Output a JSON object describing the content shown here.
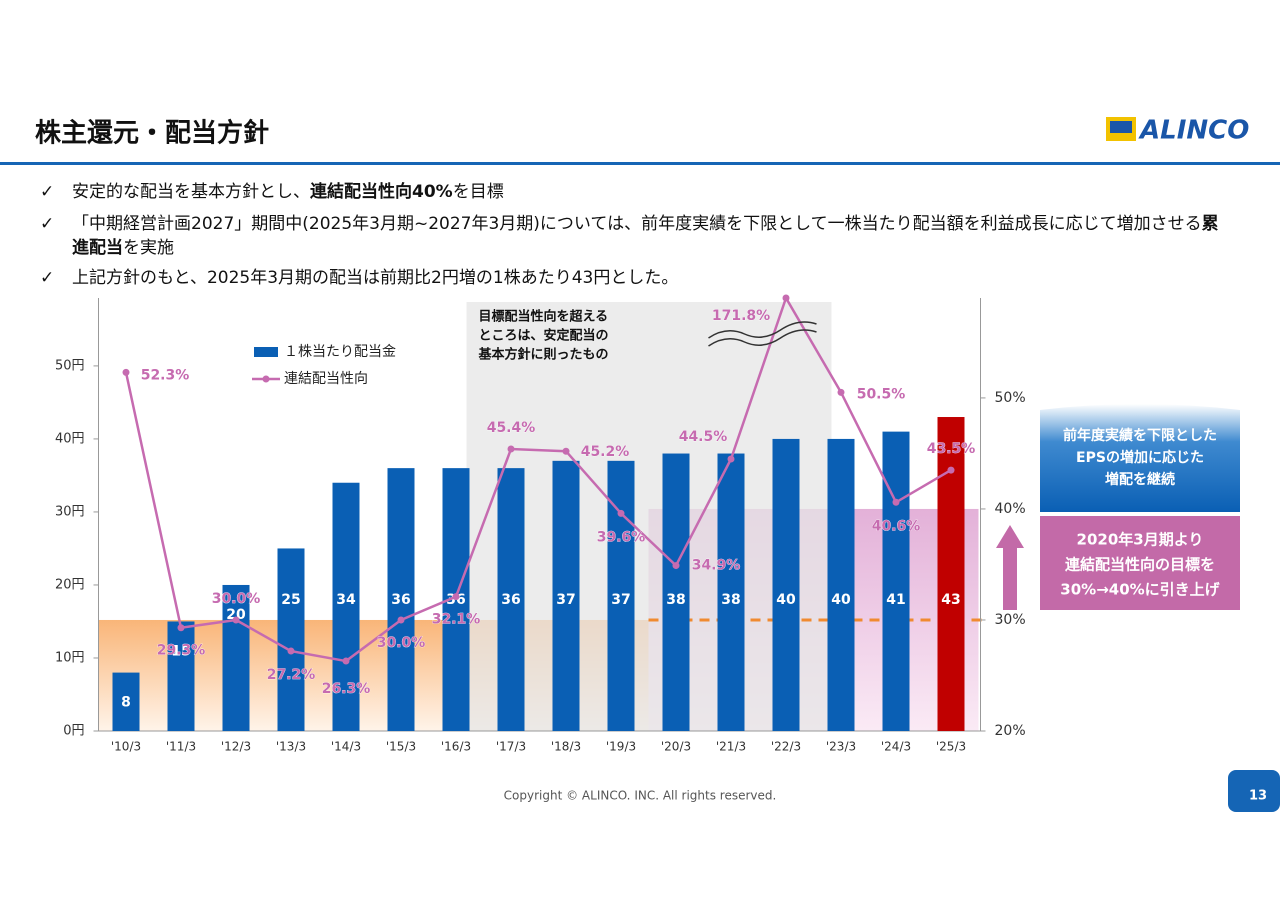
{
  "header": {
    "title": "株主還元・配当方針",
    "logo": "ALINCO"
  },
  "bullets": [
    [
      {
        "text": "安定的な配当を基本方針とし、",
        "bold": false
      },
      {
        "text": "連結配当性向40%",
        "bold": true
      },
      {
        "text": "を目標",
        "bold": false
      }
    ],
    [
      {
        "text": "「中期経営計画2027」期間中(2025年3月期~2027年3月期)については、前年度実績を下限として一株当たり配当額を利益成長に応じて増加させる",
        "bold": false
      },
      {
        "text": "累進配当",
        "bold": true
      },
      {
        "text": "を実施",
        "bold": false
      }
    ],
    [
      {
        "text": "上記方針のもと、2025年3月期の配当は前期比2円増の1株あたり43円とした。",
        "bold": false
      }
    ]
  ],
  "chart_data": {
    "type": "bar",
    "categories": [
      "'10/3",
      "'11/3",
      "'12/3",
      "'13/3",
      "'14/3",
      "'15/3",
      "'16/3",
      "'17/3",
      "'18/3",
      "'19/3",
      "'20/3",
      "'21/3",
      "'22/3",
      "'23/3",
      "'24/3",
      "'25/3"
    ],
    "series": [
      {
        "name": "１株当たり配当金",
        "type": "bar",
        "color": "#0a5fb4",
        "colors": [
          "#0a5fb4",
          "#0a5fb4",
          "#0a5fb4",
          "#0a5fb4",
          "#0a5fb4",
          "#0a5fb4",
          "#0a5fb4",
          "#0a5fb4",
          "#0a5fb4",
          "#0a5fb4",
          "#0a5fb4",
          "#0a5fb4",
          "#0a5fb4",
          "#0a5fb4",
          "#0a5fb4",
          "#c00000"
        ],
        "values": [
          8,
          15,
          20,
          25,
          34,
          36,
          36,
          36,
          37,
          37,
          38,
          38,
          40,
          40,
          41,
          43
        ]
      },
      {
        "name": "連結配当性向",
        "type": "line",
        "axis": "y2",
        "color": "#c66bb0",
        "values": [
          52.3,
          29.3,
          30.0,
          27.2,
          26.3,
          30.0,
          32.1,
          45.4,
          45.2,
          39.6,
          34.9,
          44.5,
          171.8,
          50.5,
          40.6,
          43.5
        ],
        "value_labels": [
          "52.3%",
          "29.3%",
          "30.0%",
          "27.2%",
          "26.3%",
          "30.0%",
          "32.1%",
          "45.4%",
          "45.2%",
          "39.6%",
          "34.9%",
          "44.5%",
          "171.8%",
          "50.5%",
          "40.6%",
          "43.5%"
        ]
      }
    ],
    "ylim": [
      0,
      59.3
    ],
    "yticks": [
      {
        "value": 0,
        "label": "0円"
      },
      {
        "value": 10,
        "label": "10円"
      },
      {
        "value": 20,
        "label": "20円"
      },
      {
        "value": 30,
        "label": "30円"
      },
      {
        "value": 40,
        "label": "40円"
      },
      {
        "value": 50,
        "label": "50円"
      }
    ],
    "y2lim": [
      20,
      59
    ],
    "y2ticks": [
      {
        "value": 20,
        "label": "20%"
      },
      {
        "value": 30,
        "label": "30%"
      },
      {
        "value": 40,
        "label": "40%"
      },
      {
        "value": 50,
        "label": "50%"
      }
    ],
    "axis_break": true,
    "note": [
      "目標配当性向を超える",
      "ところは、安定配当の",
      "基本方針に則ったもの"
    ]
  },
  "callouts": [
    {
      "lines": [
        "前年度実績を下限とした",
        "EPSの増加に応じた",
        "増配を継続"
      ]
    },
    {
      "lines": [
        "2020年3月期より",
        "連結配当性向の目標を",
        "30%→40%に引き上げ"
      ]
    }
  ],
  "footer": {
    "copyright": "Copyright © ALINCO. INC. All rights reserved.",
    "page": "13"
  }
}
